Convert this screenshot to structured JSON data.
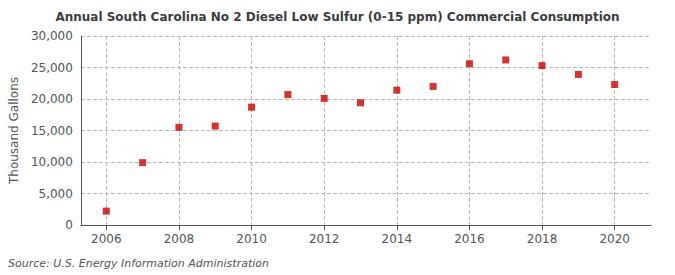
{
  "chart_data": {
    "type": "scatter",
    "title": "Annual South Carolina No 2 Diesel Low Sulfur (0-15 ppm) Commercial Consumption",
    "ylabel": "Thousand Gallons",
    "annotation": "Source: U.S. Energy Information Administration",
    "x": [
      2006,
      2007,
      2008,
      2009,
      2010,
      2011,
      2012,
      2013,
      2014,
      2015,
      2016,
      2017,
      2018,
      2019,
      2020
    ],
    "values": [
      2200,
      9900,
      15500,
      15700,
      18700,
      20700,
      20100,
      19400,
      21400,
      22000,
      25600,
      26200,
      25300,
      23900,
      22300
    ],
    "color": "#cc0000",
    "marker": "square",
    "xlim": [
      2005.3,
      2021.0
    ],
    "xticks": [
      2006,
      2008,
      2010,
      2012,
      2014,
      2016,
      2018,
      2020
    ],
    "ylim": [
      0,
      30000
    ],
    "yticks": [
      0,
      {
        "value": 5000,
        "label": "5,000"
      },
      {
        "value": 10000,
        "label": "10,000"
      },
      {
        "value": 15000,
        "label": "15,000"
      },
      {
        "value": 20000,
        "label": "20,000"
      },
      {
        "value": 25000,
        "label": "25,000"
      },
      {
        "value": 30000,
        "label": "30,000"
      }
    ],
    "grid": true
  }
}
